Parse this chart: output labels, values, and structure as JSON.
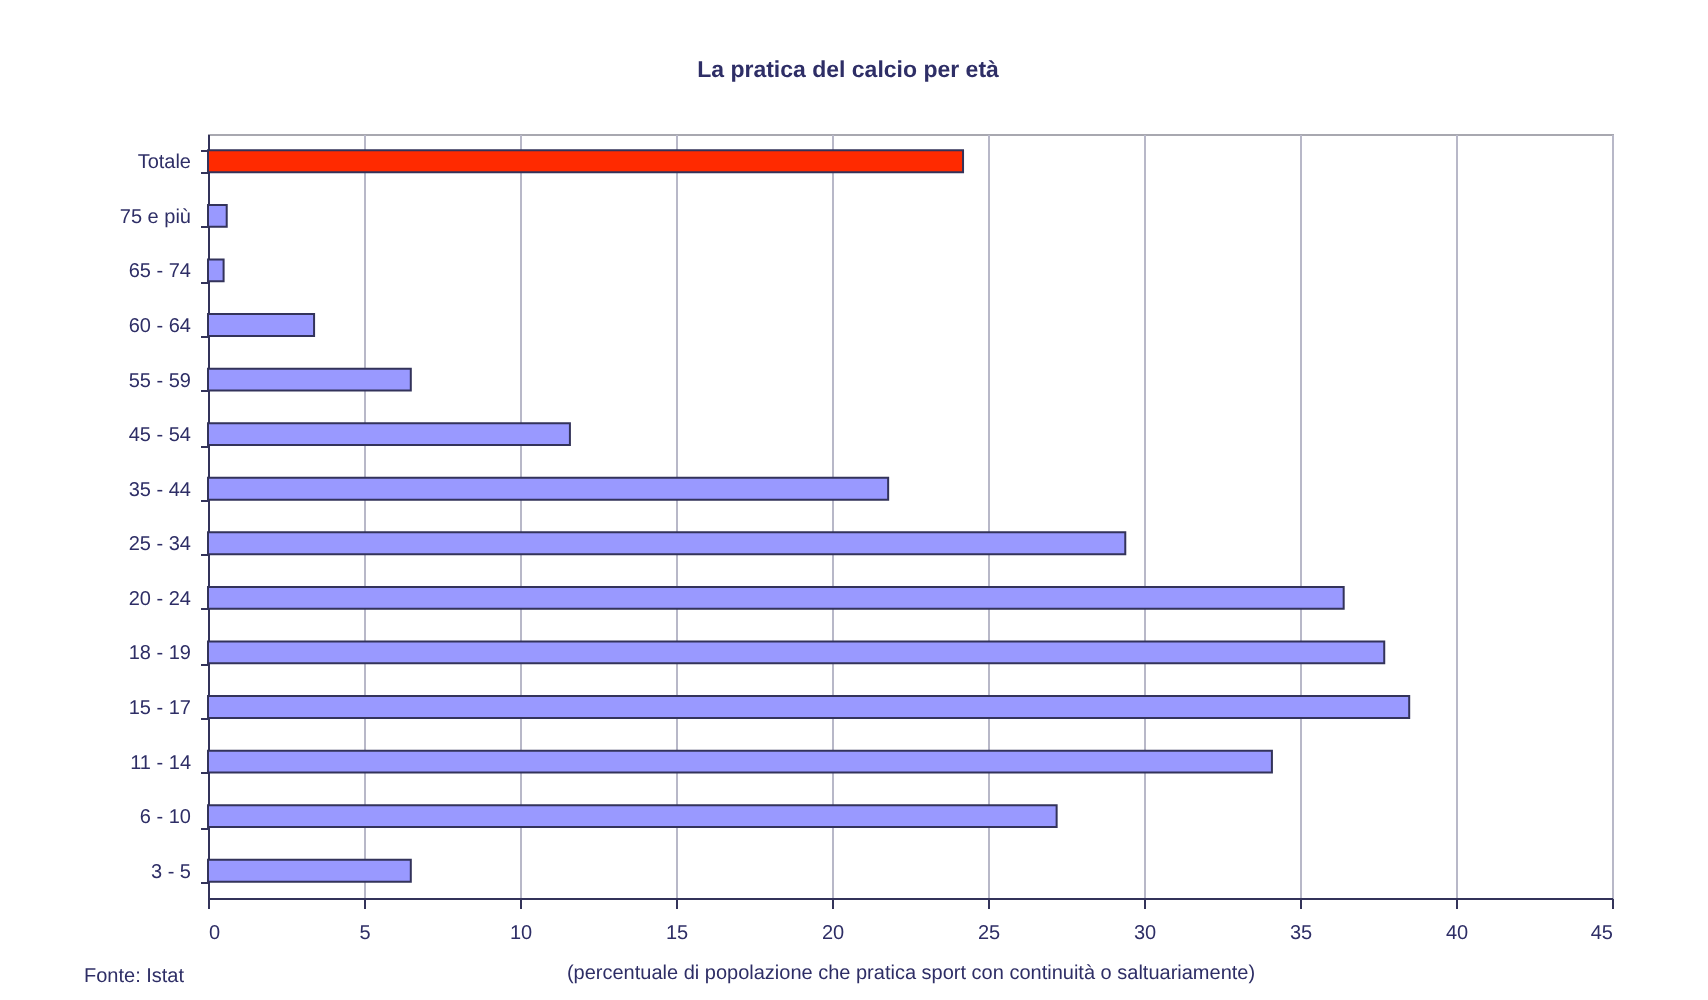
{
  "chart_data": {
    "type": "bar",
    "orientation": "horizontal",
    "title": "La pratica del calcio per età",
    "xlabel": "(percentuale di popolazione che pratica sport con continuità o saltuariamente)",
    "annotations": [
      "Fonte: Istat"
    ],
    "categories": [
      "Totale",
      "75 e più",
      "65 - 74",
      "60 - 64",
      "55 - 59",
      "45 - 54",
      "35 - 44",
      "25 - 34",
      "20 - 24",
      "18 - 19",
      "15 - 17",
      "11 - 14",
      "6 - 10",
      "3 - 5"
    ],
    "values": [
      24.2,
      0.6,
      0.5,
      3.4,
      6.5,
      11.6,
      21.8,
      29.4,
      36.4,
      37.7,
      38.5,
      34.1,
      27.2,
      6.5
    ],
    "colors": [
      "#ff2a00",
      "#9999ff",
      "#9999ff",
      "#9999ff",
      "#9999ff",
      "#9999ff",
      "#9999ff",
      "#9999ff",
      "#9999ff",
      "#9999ff",
      "#9999ff",
      "#9999ff",
      "#9999ff",
      "#9999ff"
    ],
    "xlim": [
      0,
      45
    ],
    "xticks": [
      0,
      5,
      10,
      15,
      20,
      25,
      30,
      35,
      40,
      45
    ],
    "grid": "x",
    "legend": false
  }
}
